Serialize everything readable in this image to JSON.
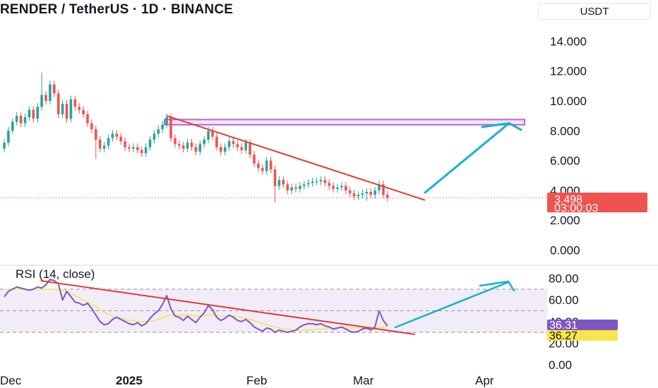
{
  "header": {
    "title": "RENDER / TetherUS · 1D · BINANCE",
    "currency_button": "USDT"
  },
  "price_tag": {
    "price": "3.498",
    "countdown": "03:00:03",
    "color": "#ef5350"
  },
  "rsi_indicator": {
    "title": "RSI (14, close)",
    "rsi_value": "36.31",
    "ma_value": "36.27",
    "rsi_color": "#7e57c2",
    "ma_color": "#f7e54a",
    "band_color": "#ede7f6"
  },
  "colors": {
    "up": "#26a69a",
    "down": "#ef5350",
    "trendline": "#e53935",
    "arrow": "#17b2c9",
    "zone": "#b36ad6"
  },
  "chart_data": [
    {
      "type": "candlestick",
      "title": "RENDER / TetherUS · 1D · BINANCE",
      "ylim": [
        0,
        15
      ],
      "y_ticks": [
        "0.000",
        "2.000",
        "4.000",
        "6.000",
        "8.000",
        "10.000",
        "12.000",
        "14.000"
      ],
      "x_ticks": [
        "Dec",
        "2025",
        "Feb",
        "Mar",
        "Apr"
      ],
      "last_price": 3.498,
      "close_series": [
        7.2,
        8.0,
        8.6,
        9.0,
        8.5,
        8.9,
        9.4,
        8.8,
        9.6,
        10.4,
        10.0,
        11.1,
        10.5,
        9.1,
        9.8,
        8.8,
        10.1,
        9.6,
        9.4,
        9.1,
        8.5,
        8.1,
        7.4,
        6.8,
        7.0,
        7.5,
        7.8,
        7.6,
        7.3,
        6.9,
        6.8,
        6.9,
        6.7,
        6.5,
        6.9,
        7.4,
        7.8,
        8.1,
        8.4,
        8.9,
        7.5,
        7.1,
        7.0,
        6.8,
        7.2,
        6.9,
        6.6,
        7.1,
        7.4,
        8.0,
        7.6,
        6.9,
        6.6,
        6.9,
        7.3,
        7.1,
        6.9,
        6.7,
        7.2,
        6.4,
        5.8,
        5.5,
        5.3,
        6.0,
        5.4,
        4.3,
        4.7,
        4.4,
        4.0,
        4.2,
        4.1,
        4.3,
        4.4,
        4.5,
        4.6,
        4.6,
        4.7,
        4.5,
        4.3,
        4.1,
        4.2,
        4.3,
        4.0,
        3.8,
        3.6,
        3.7,
        3.8,
        3.9,
        3.7,
        4.0,
        4.4,
        3.7,
        3.5
      ],
      "resistance_zone": [
        8.4,
        8.75
      ],
      "trendline": [
        {
          "index": 39,
          "price": 9.0
        },
        {
          "index": 101,
          "price": 3.35
        }
      ],
      "projected_target": 8.5
    },
    {
      "type": "line",
      "title": "RSI (14, close)",
      "ylim": [
        0,
        80
      ],
      "y_ticks": [
        "0.00",
        "20.00",
        "40.00",
        "60.00",
        "80.00"
      ],
      "band": [
        30,
        70
      ],
      "midline": 50,
      "series": [
        {
          "name": "RSI",
          "values": [
            63,
            68,
            70,
            72,
            71,
            70,
            69,
            70,
            72,
            71,
            74,
            79,
            78,
            75,
            60,
            68,
            63,
            58,
            57,
            55,
            57,
            52,
            46,
            40,
            37,
            38,
            42,
            44,
            42,
            40,
            38,
            37,
            39,
            36,
            38,
            43,
            47,
            50,
            56,
            64,
            52,
            45,
            44,
            41,
            45,
            42,
            39,
            44,
            48,
            55,
            51,
            44,
            41,
            43,
            46,
            44,
            41,
            40,
            42,
            39,
            35,
            33,
            31,
            34,
            33,
            30,
            32,
            31,
            30,
            31,
            32,
            35,
            37,
            38,
            38,
            37,
            38,
            36,
            35,
            33,
            34,
            35,
            33,
            31,
            30,
            31,
            33,
            34,
            32,
            35,
            50,
            41,
            36
          ]
        },
        {
          "name": "RSI-based MA",
          "values": [
            70,
            70,
            70,
            70,
            70,
            70,
            70,
            70,
            70,
            70,
            70,
            70,
            70,
            70,
            69,
            68,
            66,
            64,
            62,
            60,
            58,
            56,
            54,
            51,
            49,
            47,
            45,
            44,
            43,
            42,
            41,
            41,
            40,
            40,
            40,
            40,
            41,
            42,
            43,
            45,
            46,
            46,
            46,
            46,
            46,
            46,
            45,
            45,
            45,
            46,
            46,
            46,
            45,
            45,
            45,
            45,
            44,
            44,
            43,
            42,
            41,
            40,
            38,
            37,
            36,
            35,
            34,
            33,
            33,
            32,
            32,
            32,
            32,
            32,
            32,
            33,
            33,
            33,
            34,
            34,
            34,
            34,
            34,
            34,
            34,
            34,
            34,
            34,
            34,
            34,
            35,
            35,
            36
          ]
        }
      ]
    }
  ]
}
